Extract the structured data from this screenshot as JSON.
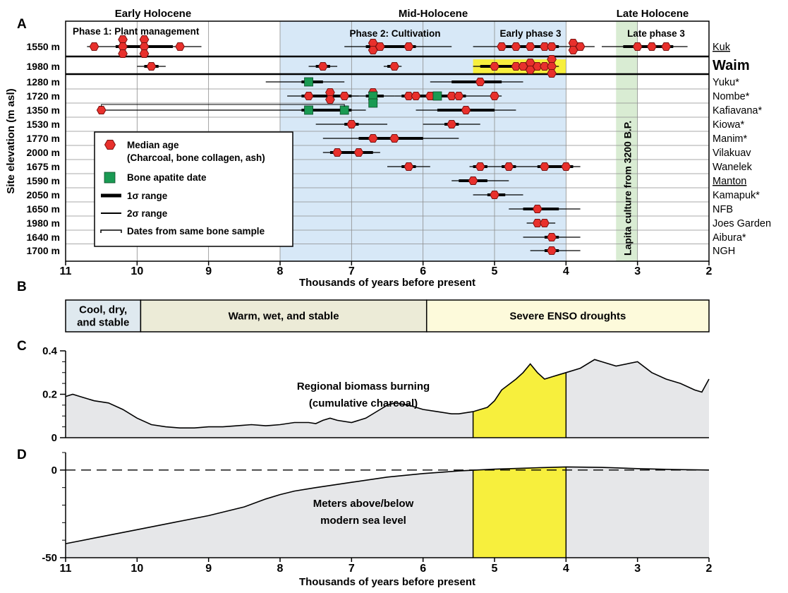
{
  "figure": {
    "panel_letters": [
      "A",
      "B",
      "C",
      "D"
    ]
  },
  "chart_data": [
    {
      "panel": "A",
      "type": "scatter",
      "xlabel": "Thousands of years before present",
      "ylabel": "Site elevation (m asl)",
      "xlim": [
        11,
        2
      ],
      "xticks": [
        "11",
        "10",
        "9",
        "8",
        "7",
        "6",
        "5",
        "4",
        "3",
        "2"
      ],
      "grid": true,
      "period_labels": [
        "Early Holocene",
        "Mid-Holocene",
        "Late Holocene"
      ],
      "phase_labels": [
        "Phase 1: Plant management",
        "Phase 2: Cultivation",
        "Early phase 3",
        "Late phase 3"
      ],
      "phase2_range": [
        8,
        4
      ],
      "early_phase3_range": [
        5.3,
        4
      ],
      "lapita": {
        "label": "Lapita culture from 3200 B.P.",
        "range": [
          3.3,
          3.0
        ]
      },
      "legend": {
        "placement": "lower-left",
        "items": [
          {
            "label": "Median age",
            "sub": "(Charcoal, bone collagen, ash)"
          },
          {
            "label": "Bone apatite date"
          },
          {
            "label": "1σ range"
          },
          {
            "label": "2σ range"
          },
          {
            "label": "Dates from same bone sample"
          }
        ]
      },
      "rows": [
        {
          "elev": "1550 m",
          "site": "Kuk",
          "underline": true,
          "medians": [
            10.6,
            10.2,
            10.2,
            10.2,
            9.9,
            9.9,
            9.9,
            9.4,
            6.7,
            6.7,
            6.6,
            6.2,
            4.9,
            4.7,
            4.5,
            4.3,
            4.2,
            3.9,
            3.9,
            3.8,
            3.0,
            2.8,
            2.6
          ],
          "apatite": [],
          "ranges_1s": [
            [
              10.3,
              9.5
            ],
            [
              6.8,
              6.1
            ],
            [
              4.9,
              4.1
            ],
            [
              3.2,
              2.5
            ]
          ],
          "ranges_2s": [
            [
              10.7,
              9.1
            ],
            [
              7.1,
              5.6
            ],
            [
              5.3,
              3.6
            ],
            [
              3.5,
              2.3
            ]
          ]
        },
        {
          "elev": "1980 m",
          "site": "Waim",
          "bold": true,
          "medians": [
            9.8,
            7.4,
            6.4,
            5.0,
            4.7,
            4.6,
            4.5,
            4.5,
            4.4,
            4.3,
            4.2,
            4.2,
            4.2
          ],
          "apatite": [],
          "ranges_1s": [
            [
              9.9,
              9.7
            ],
            [
              7.5,
              7.3
            ],
            [
              6.5,
              6.35
            ],
            [
              5.2,
              4.15
            ]
          ],
          "ranges_2s": [
            [
              10.0,
              9.6
            ],
            [
              7.6,
              7.2
            ],
            [
              6.55,
              6.3
            ],
            [
              5.3,
              4.1
            ]
          ]
        },
        {
          "elev": "1280 m",
          "site": "Yuku*",
          "medians": [
            5.2
          ],
          "apatite": [
            7.6
          ],
          "ranges_1s": [
            [
              7.7,
              7.4
            ],
            [
              5.6,
              4.9
            ]
          ],
          "ranges_2s": [
            [
              8.2,
              7.1
            ],
            [
              5.9,
              4.6
            ]
          ]
        },
        {
          "elev": "1720 m",
          "site": "Nombe*",
          "medians": [
            7.6,
            7.3,
            7.3,
            7.1,
            6.7,
            6.7,
            6.2,
            6.1,
            5.9,
            5.6,
            5.5,
            5.0
          ],
          "apatite": [
            6.7,
            6.7,
            5.8
          ],
          "ranges_1s": [
            [
              7.7,
              7.0
            ],
            [
              6.8,
              6.55
            ],
            [
              6.3,
              5.4
            ]
          ],
          "ranges_2s": [
            [
              7.9,
              6.9
            ],
            [
              7.0,
              6.4
            ],
            [
              6.4,
              4.9
            ]
          ]
        },
        {
          "elev": "1350 m",
          "site": "Kafiavana*",
          "medians": [
            10.5,
            5.4
          ],
          "apatite": [
            7.6,
            7.1
          ],
          "ranges_1s": [
            [
              7.7,
              7.0
            ],
            [
              5.8,
              5.0
            ]
          ],
          "ranges_2s": [
            [
              10.55,
              6.8
            ],
            [
              6.1,
              4.7
            ]
          ]
        },
        {
          "elev": "1530 m",
          "site": "Kiowa*",
          "medians": [
            7.0,
            5.6
          ],
          "apatite": [],
          "ranges_1s": [
            [
              7.1,
              6.9
            ],
            [
              5.7,
              5.5
            ]
          ],
          "ranges_2s": [
            [
              7.5,
              6.5
            ],
            [
              6.0,
              5.2
            ]
          ]
        },
        {
          "elev": "1770 m",
          "site": "Manim*",
          "medians": [
            6.7,
            6.4
          ],
          "apatite": [],
          "ranges_1s": [
            [
              6.9,
              6.0
            ]
          ],
          "ranges_2s": [
            [
              7.4,
              5.5
            ]
          ]
        },
        {
          "elev": "2000 m",
          "site": "Vilakuav",
          "medians": [
            7.2,
            6.9
          ],
          "apatite": [],
          "ranges_1s": [
            [
              7.3,
              6.7
            ]
          ],
          "ranges_2s": [
            [
              7.4,
              6.6
            ]
          ]
        },
        {
          "elev": "1675 m",
          "site": "Wanelek",
          "medians": [
            6.2,
            5.2,
            4.8,
            4.3,
            4.0
          ],
          "apatite": [],
          "ranges_1s": [
            [
              6.3,
              6.1
            ],
            [
              5.3,
              5.1
            ],
            [
              4.9,
              4.7
            ],
            [
              4.4,
              3.9
            ]
          ],
          "ranges_2s": [
            [
              6.5,
              5.9
            ],
            [
              5.35,
              3.8
            ]
          ]
        },
        {
          "elev": "1590 m",
          "site": "Manton",
          "underline": true,
          "medians": [
            5.3
          ],
          "apatite": [],
          "ranges_1s": [
            [
              5.5,
              5.1
            ]
          ],
          "ranges_2s": [
            [
              5.6,
              4.8
            ]
          ]
        },
        {
          "elev": "2050 m",
          "site": "Kamapuk*",
          "medians": [
            5.0
          ],
          "apatite": [],
          "ranges_1s": [
            [
              5.1,
              4.85
            ]
          ],
          "ranges_2s": [
            [
              5.3,
              4.6
            ]
          ]
        },
        {
          "elev": "1650 m",
          "site": "NFB",
          "medians": [
            4.4
          ],
          "apatite": [],
          "ranges_1s": [
            [
              4.6,
              4.1
            ]
          ],
          "ranges_2s": [
            [
              4.8,
              3.8
            ]
          ]
        },
        {
          "elev": "1980 m",
          "site": "Joes Garden",
          "medians": [
            4.4,
            4.3
          ],
          "apatite": [],
          "ranges_1s": [
            [
              4.45,
              4.25
            ]
          ],
          "ranges_2s": [
            [
              4.55,
              4.15
            ]
          ]
        },
        {
          "elev": "1640 m",
          "site": "Aibura*",
          "medians": [
            4.2
          ],
          "apatite": [],
          "ranges_1s": [
            [
              4.3,
              4.1
            ]
          ],
          "ranges_2s": [
            [
              4.6,
              3.8
            ]
          ]
        },
        {
          "elev": "1700 m",
          "site": "NGH",
          "medians": [
            4.2
          ],
          "apatite": [],
          "ranges_1s": [
            [
              4.3,
              4.1
            ]
          ],
          "ranges_2s": [
            [
              4.5,
              3.8
            ]
          ]
        }
      ]
    },
    {
      "panel": "B",
      "type": "table",
      "segments": [
        {
          "lines": [
            "Cool, dry,",
            "and stable"
          ],
          "from": 11,
          "to": 9.95,
          "color": "#dfe9ef"
        },
        {
          "lines": [
            "Warm, wet, and stable"
          ],
          "from": 9.95,
          "to": 5.95,
          "color": "#ecebd7"
        },
        {
          "lines": [
            "Severe ENSO droughts"
          ],
          "from": 5.95,
          "to": 2,
          "color": "#fdfadb"
        }
      ]
    },
    {
      "panel": "C",
      "type": "area",
      "label_lines": [
        "Regional biomass burning",
        "(cumulative charcoal)"
      ],
      "xlim": [
        11,
        2
      ],
      "ylim": [
        0,
        0.4
      ],
      "yticks": [
        "0",
        "0.2",
        "0.4"
      ],
      "highlight": [
        5.3,
        4.0
      ],
      "x": [
        11,
        10.9,
        10.8,
        10.6,
        10.4,
        10.2,
        10.0,
        9.8,
        9.6,
        9.4,
        9.2,
        9.0,
        8.8,
        8.6,
        8.4,
        8.2,
        8.0,
        7.8,
        7.6,
        7.5,
        7.4,
        7.3,
        7.2,
        7.0,
        6.8,
        6.6,
        6.5,
        6.4,
        6.3,
        6.2,
        6.0,
        5.8,
        5.6,
        5.5,
        5.3,
        5.1,
        5.0,
        4.9,
        4.7,
        4.6,
        4.5,
        4.4,
        4.3,
        4.2,
        4.1,
        4.0,
        3.8,
        3.6,
        3.5,
        3.3,
        3.0,
        2.8,
        2.6,
        2.4,
        2.2,
        2.1,
        2.0
      ],
      "y": [
        0.19,
        0.2,
        0.19,
        0.17,
        0.16,
        0.13,
        0.09,
        0.06,
        0.05,
        0.045,
        0.045,
        0.05,
        0.05,
        0.055,
        0.06,
        0.055,
        0.06,
        0.07,
        0.07,
        0.065,
        0.08,
        0.09,
        0.08,
        0.07,
        0.09,
        0.13,
        0.15,
        0.16,
        0.155,
        0.15,
        0.13,
        0.12,
        0.11,
        0.11,
        0.12,
        0.14,
        0.17,
        0.22,
        0.27,
        0.3,
        0.34,
        0.3,
        0.27,
        0.28,
        0.29,
        0.3,
        0.32,
        0.36,
        0.35,
        0.33,
        0.35,
        0.3,
        0.27,
        0.25,
        0.22,
        0.21,
        0.27
      ]
    },
    {
      "panel": "D",
      "type": "area",
      "label_lines": [
        "Meters above/below",
        "modern sea level"
      ],
      "xlabel": "Thousands of years before present",
      "xlim": [
        11,
        2
      ],
      "ylim": [
        -50,
        10
      ],
      "xticks": [
        "11",
        "10",
        "9",
        "8",
        "7",
        "6",
        "5",
        "4",
        "3",
        "2"
      ],
      "yticks": [
        "-50",
        "0"
      ],
      "reference_line": 0,
      "highlight": [
        5.3,
        4.0
      ],
      "x": [
        11,
        10.5,
        10,
        9.5,
        9,
        8.5,
        8.2,
        8.0,
        7.8,
        7.5,
        7.0,
        6.5,
        6.0,
        5.5,
        5.0,
        4.5,
        4.0,
        3.5,
        3.0,
        2.5,
        2.0
      ],
      "y": [
        -42,
        -38,
        -34,
        -30,
        -26,
        -21,
        -16.5,
        -14,
        -12,
        -10,
        -7,
        -4,
        -2,
        -0.5,
        0.5,
        1.2,
        1.8,
        1.5,
        0.8,
        0.3,
        0
      ]
    }
  ]
}
